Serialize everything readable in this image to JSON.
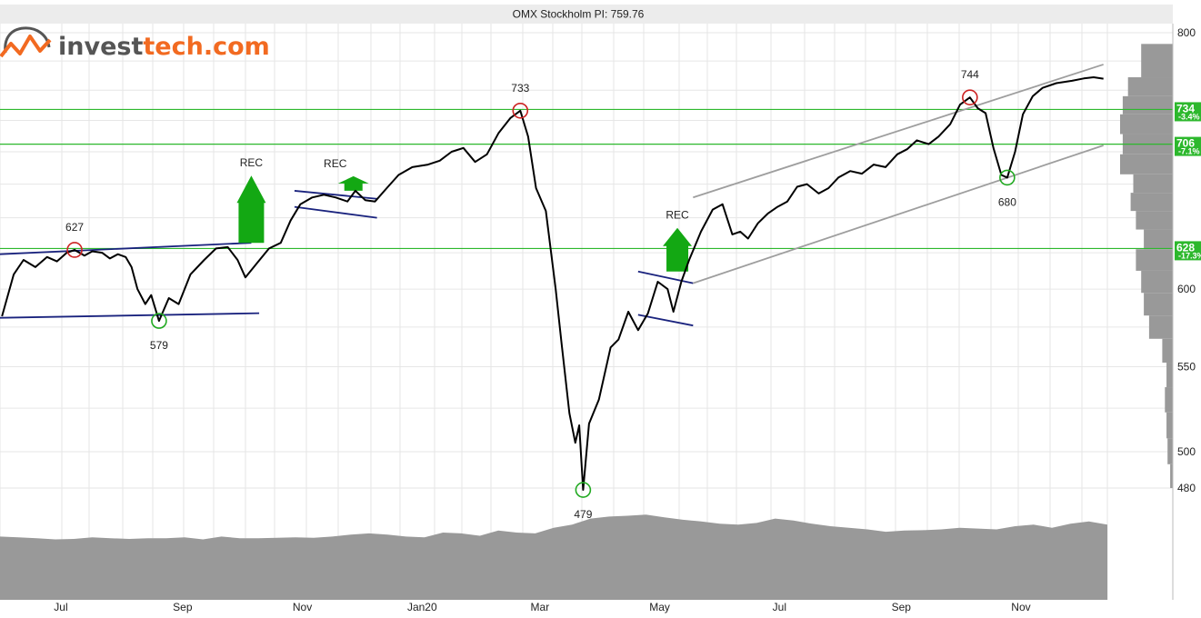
{
  "logo": {
    "prefix": "invest",
    "suffix": "tech.com"
  },
  "chart_data": {
    "type": "line",
    "title": "OMX Stockholm PI: 759.76",
    "y_scale": "log",
    "ylim": [
      480,
      800
    ],
    "y_ticks": [
      800,
      600,
      550,
      500,
      480
    ],
    "x_ticks": [
      "Jul",
      "Sep",
      "Nov",
      "Jan20",
      "Mar",
      "May",
      "Jul",
      "Sep",
      "Nov"
    ],
    "x_range": [
      "2019-05-31",
      "2020-12-15"
    ],
    "grid": true,
    "series": [
      {
        "points": [
          [
            "2019-06-01",
            582
          ],
          [
            "2019-06-07",
            610
          ],
          [
            "2019-06-12",
            620
          ],
          [
            "2019-06-18",
            615
          ],
          [
            "2019-06-24",
            622
          ],
          [
            "2019-06-29",
            619
          ],
          [
            "2019-07-04",
            625
          ],
          [
            "2019-07-08",
            627
          ],
          [
            "2019-07-13",
            623
          ],
          [
            "2019-07-17",
            626
          ],
          [
            "2019-07-22",
            625
          ],
          [
            "2019-07-26",
            621
          ],
          [
            "2019-07-30",
            624
          ],
          [
            "2019-08-03",
            622
          ],
          [
            "2019-08-06",
            615
          ],
          [
            "2019-08-09",
            600
          ],
          [
            "2019-08-13",
            590
          ],
          [
            "2019-08-16",
            596
          ],
          [
            "2019-08-20",
            579
          ],
          [
            "2019-08-25",
            594
          ],
          [
            "2019-08-30",
            590
          ],
          [
            "2019-09-05",
            610
          ],
          [
            "2019-09-12",
            620
          ],
          [
            "2019-09-18",
            628
          ],
          [
            "2019-09-24",
            629
          ],
          [
            "2019-09-29",
            620
          ],
          [
            "2019-10-03",
            608
          ],
          [
            "2019-10-09",
            618
          ],
          [
            "2019-10-15",
            628
          ],
          [
            "2019-10-21",
            632
          ],
          [
            "2019-10-26",
            648
          ],
          [
            "2019-10-31",
            660
          ],
          [
            "2019-11-06",
            665
          ],
          [
            "2019-11-12",
            667
          ],
          [
            "2019-11-18",
            665
          ],
          [
            "2019-11-24",
            662
          ],
          [
            "2019-11-28",
            670
          ],
          [
            "2019-12-03",
            663
          ],
          [
            "2019-12-08",
            662
          ],
          [
            "2019-12-14",
            672
          ],
          [
            "2019-12-20",
            682
          ],
          [
            "2019-12-27",
            688
          ],
          [
            "2020-01-04",
            690
          ],
          [
            "2020-01-10",
            693
          ],
          [
            "2020-01-16",
            700
          ],
          [
            "2020-01-22",
            703
          ],
          [
            "2020-01-28",
            692
          ],
          [
            "2020-02-03",
            698
          ],
          [
            "2020-02-09",
            715
          ],
          [
            "2020-02-15",
            727
          ],
          [
            "2020-02-20",
            733
          ],
          [
            "2020-02-24",
            712
          ],
          [
            "2020-02-28",
            672
          ],
          [
            "2020-03-04",
            655
          ],
          [
            "2020-03-09",
            600
          ],
          [
            "2020-03-12",
            565
          ],
          [
            "2020-03-16",
            522
          ],
          [
            "2020-03-19",
            505
          ],
          [
            "2020-03-21",
            515
          ],
          [
            "2020-03-23",
            479
          ],
          [
            "2020-03-26",
            516
          ],
          [
            "2020-03-31",
            530
          ],
          [
            "2020-04-06",
            562
          ],
          [
            "2020-04-10",
            567
          ],
          [
            "2020-04-15",
            585
          ],
          [
            "2020-04-20",
            573
          ],
          [
            "2020-04-25",
            584
          ],
          [
            "2020-04-30",
            605
          ],
          [
            "2020-05-05",
            600
          ],
          [
            "2020-05-08",
            585
          ],
          [
            "2020-05-12",
            605
          ],
          [
            "2020-05-16",
            620
          ],
          [
            "2020-05-22",
            640
          ],
          [
            "2020-05-28",
            656
          ],
          [
            "2020-06-02",
            660
          ],
          [
            "2020-06-07",
            638
          ],
          [
            "2020-06-11",
            640
          ],
          [
            "2020-06-15",
            635
          ],
          [
            "2020-06-20",
            646
          ],
          [
            "2020-06-25",
            653
          ],
          [
            "2020-06-30",
            658
          ],
          [
            "2020-07-05",
            662
          ],
          [
            "2020-07-10",
            673
          ],
          [
            "2020-07-15",
            675
          ],
          [
            "2020-07-21",
            668
          ],
          [
            "2020-07-26",
            672
          ],
          [
            "2020-07-31",
            680
          ],
          [
            "2020-08-06",
            685
          ],
          [
            "2020-08-12",
            683
          ],
          [
            "2020-08-18",
            690
          ],
          [
            "2020-08-24",
            688
          ],
          [
            "2020-08-30",
            698
          ],
          [
            "2020-09-04",
            702
          ],
          [
            "2020-09-09",
            709
          ],
          [
            "2020-09-15",
            706
          ],
          [
            "2020-09-20",
            712
          ],
          [
            "2020-09-26",
            722
          ],
          [
            "2020-10-01",
            738
          ],
          [
            "2020-10-06",
            744
          ],
          [
            "2020-10-10",
            735
          ],
          [
            "2020-10-14",
            731
          ],
          [
            "2020-10-18",
            703
          ],
          [
            "2020-10-22",
            682
          ],
          [
            "2020-10-25",
            680
          ],
          [
            "2020-10-29",
            700
          ],
          [
            "2020-11-02",
            730
          ],
          [
            "2020-11-07",
            745
          ],
          [
            "2020-11-12",
            752
          ],
          [
            "2020-11-19",
            756
          ],
          [
            "2020-11-27",
            758
          ],
          [
            "2020-12-03",
            760
          ],
          [
            "2020-12-08",
            761
          ],
          [
            "2020-12-13",
            759.76
          ]
        ]
      }
    ],
    "annotations": {
      "peaks": [
        {
          "date": "2019-07-08",
          "value": 627,
          "label": "627"
        },
        {
          "date": "2020-02-20",
          "value": 733,
          "label": "733"
        },
        {
          "date": "2020-10-06",
          "value": 744,
          "label": "744"
        }
      ],
      "troughs": [
        {
          "date": "2019-08-20",
          "value": 579,
          "label": "579"
        },
        {
          "date": "2020-03-23",
          "value": 479,
          "label": "479"
        },
        {
          "date": "2020-10-25",
          "value": 680,
          "label": "680"
        }
      ],
      "signals": [
        {
          "label": "REC",
          "date": "2019-10-06",
          "value": 632,
          "direction": "up",
          "size": "large"
        },
        {
          "label": "REC",
          "date": "2019-11-27",
          "value": 670,
          "direction": "up",
          "size": "small"
        },
        {
          "label": "REC",
          "date": "2020-05-10",
          "value": 612,
          "direction": "up",
          "size": "medium"
        }
      ],
      "levels": [
        {
          "value": 734,
          "label": "734",
          "pct": "-3.4%"
        },
        {
          "value": 706,
          "label": "706",
          "pct": "-7.1%"
        },
        {
          "value": 628,
          "label": "628",
          "pct": "-17.3%"
        }
      ],
      "trend_channels": [
        {
          "color": "#1a237e",
          "lines": [
            [
              [
                "2019-05-31",
                624
              ],
              [
                "2019-10-06",
                632
              ]
            ],
            [
              [
                "2019-05-31",
                581
              ],
              [
                "2019-10-10",
                584
              ]
            ]
          ]
        },
        {
          "color": "#1a237e",
          "lines": [
            [
              [
                "2019-10-28",
                670
              ],
              [
                "2019-12-09",
                664
              ]
            ],
            [
              [
                "2019-10-28",
                658
              ],
              [
                "2019-12-09",
                650
              ]
            ]
          ]
        },
        {
          "color": "#1a237e",
          "lines": [
            [
              [
                "2020-04-20",
                612
              ],
              [
                "2020-05-18",
                604
              ]
            ],
            [
              [
                "2020-04-20",
                583
              ],
              [
                "2020-05-18",
                576
              ]
            ]
          ]
        },
        {
          "color": "#9e9e9e",
          "lines": [
            [
              [
                "2020-05-18",
                665
              ],
              [
                "2020-12-13",
                772
              ]
            ],
            [
              [
                "2020-05-18",
                604
              ],
              [
                "2020-12-13",
                705
              ]
            ]
          ]
        }
      ]
    }
  },
  "volume_band": {
    "color": "#999999",
    "values": [
      0.4,
      0.38,
      0.36,
      0.33,
      0.34,
      0.38,
      0.36,
      0.34,
      0.36,
      0.36,
      0.38,
      0.33,
      0.4,
      0.36,
      0.36,
      0.37,
      0.38,
      0.37,
      0.4,
      0.45,
      0.48,
      0.45,
      0.4,
      0.38,
      0.5,
      0.48,
      0.42,
      0.55,
      0.5,
      0.48,
      0.62,
      0.7,
      0.85,
      0.9,
      0.92,
      0.95,
      0.88,
      0.82,
      0.78,
      0.72,
      0.7,
      0.74,
      0.85,
      0.8,
      0.72,
      0.66,
      0.62,
      0.58,
      0.52,
      0.55,
      0.56,
      0.58,
      0.62,
      0.6,
      0.58,
      0.66,
      0.7,
      0.62,
      0.72,
      0.78,
      0.7
    ]
  },
  "profile_histogram": {
    "color": "#999999",
    "bars": [
      {
        "price": 770,
        "weight": 0.6
      },
      {
        "price": 752,
        "weight": 0.85
      },
      {
        "price": 738,
        "weight": 0.95
      },
      {
        "price": 722,
        "weight": 1.0
      },
      {
        "price": 706,
        "weight": 0.95
      },
      {
        "price": 690,
        "weight": 1.0
      },
      {
        "price": 675,
        "weight": 0.75
      },
      {
        "price": 662,
        "weight": 0.8
      },
      {
        "price": 648,
        "weight": 0.7
      },
      {
        "price": 635,
        "weight": 0.55
      },
      {
        "price": 620,
        "weight": 0.7
      },
      {
        "price": 605,
        "weight": 0.6
      },
      {
        "price": 590,
        "weight": 0.55
      },
      {
        "price": 575,
        "weight": 0.45
      },
      {
        "price": 560,
        "weight": 0.2
      },
      {
        "price": 545,
        "weight": 0.12
      },
      {
        "price": 530,
        "weight": 0.15
      },
      {
        "price": 515,
        "weight": 0.12
      },
      {
        "price": 500,
        "weight": 0.1
      },
      {
        "price": 486,
        "weight": 0.05
      }
    ]
  },
  "colors": {
    "price": "#000000",
    "level": "#2db82d",
    "arrow": "#13a813",
    "peak_circle": "#cc2222",
    "trough_circle": "#22aa22",
    "grid": "#e6e6e6",
    "title_bar": "#ececec",
    "logo_orange": "#f26a21",
    "logo_dark": "#555555"
  }
}
